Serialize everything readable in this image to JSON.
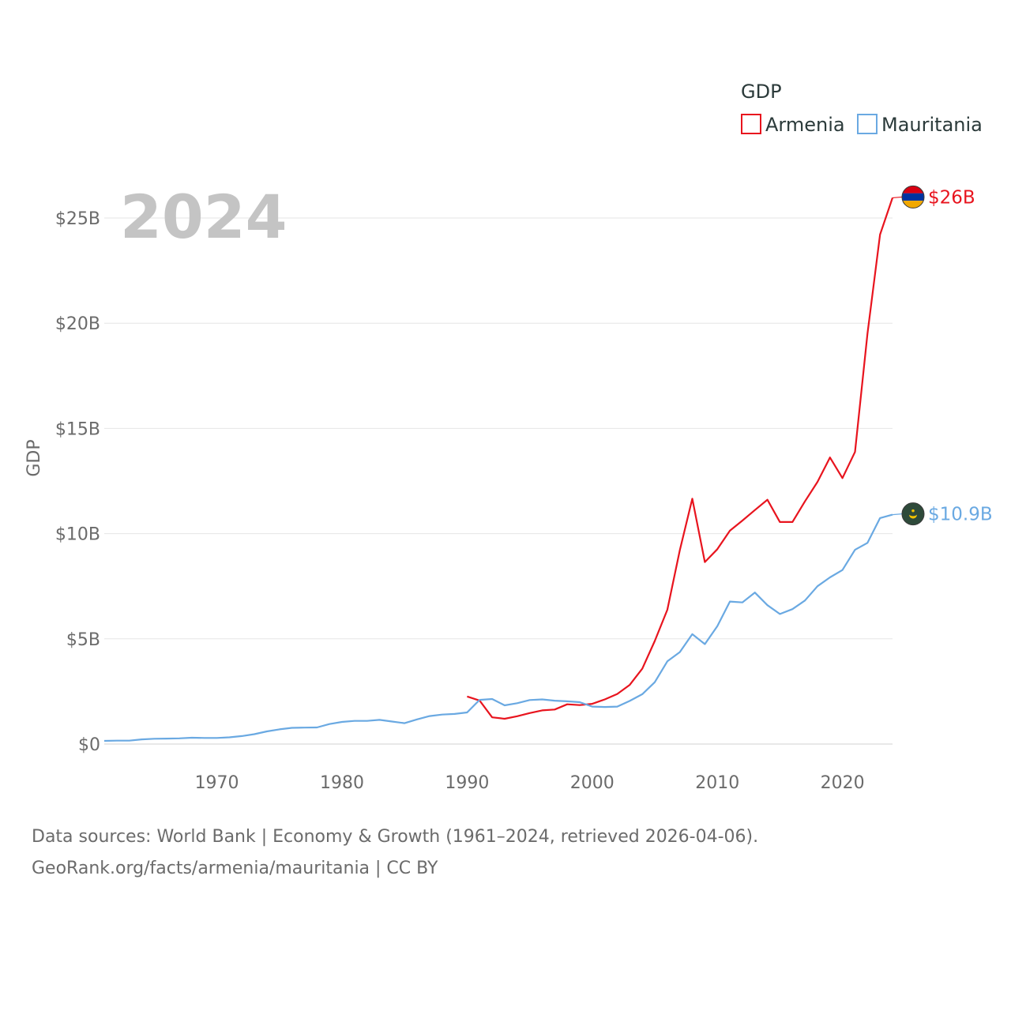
{
  "chart_data": {
    "type": "line",
    "title": "GDP",
    "ylabel": "GDP",
    "xlabel": "",
    "year_display": "2024",
    "xlim": [
      1961,
      2024
    ],
    "ylim": [
      0,
      27
    ],
    "x_ticks": [
      1970,
      1980,
      1990,
      2000,
      2010,
      2020
    ],
    "y_ticks": [
      {
        "value": 0,
        "label": "$0"
      },
      {
        "value": 5,
        "label": "$5B"
      },
      {
        "value": 10,
        "label": "$10B"
      },
      {
        "value": 15,
        "label": "$15B"
      },
      {
        "value": 20,
        "label": "$20B"
      },
      {
        "value": 25,
        "label": "$25B"
      }
    ],
    "units": "billions USD",
    "legend": {
      "title": "GDP",
      "position": "top-right"
    },
    "series": [
      {
        "name": "Armenia",
        "color": "#e8141e",
        "end_label": "$26B",
        "flag_icon": "armenia-flag-icon",
        "x": [
          1990,
          1991,
          1992,
          1993,
          1994,
          1995,
          1996,
          1997,
          1998,
          1999,
          2000,
          2001,
          2002,
          2003,
          2004,
          2005,
          2006,
          2007,
          2008,
          2009,
          2010,
          2011,
          2012,
          2013,
          2014,
          2015,
          2016,
          2017,
          2018,
          2019,
          2020,
          2021,
          2022,
          2023,
          2024
        ],
        "values": [
          2.26,
          2.07,
          1.27,
          1.2,
          1.32,
          1.47,
          1.6,
          1.64,
          1.89,
          1.85,
          1.91,
          2.12,
          2.38,
          2.81,
          3.58,
          4.9,
          6.38,
          9.21,
          11.66,
          8.65,
          9.26,
          10.14,
          10.62,
          11.12,
          11.61,
          10.55,
          10.55,
          11.53,
          12.46,
          13.62,
          12.64,
          13.88,
          19.51,
          24.21,
          25.96
        ]
      },
      {
        "name": "Mauritania",
        "color": "#6aa9e2",
        "end_label": "$10.9B",
        "flag_icon": "mauritania-flag-icon",
        "x": [
          1961,
          1962,
          1963,
          1964,
          1965,
          1966,
          1967,
          1968,
          1969,
          1970,
          1971,
          1972,
          1973,
          1974,
          1975,
          1976,
          1977,
          1978,
          1979,
          1980,
          1981,
          1982,
          1983,
          1984,
          1985,
          1986,
          1987,
          1988,
          1989,
          1990,
          1991,
          1992,
          1993,
          1994,
          1995,
          1996,
          1997,
          1998,
          1999,
          2000,
          2001,
          2002,
          2003,
          2004,
          2005,
          2006,
          2007,
          2008,
          2009,
          2010,
          2011,
          2012,
          2013,
          2014,
          2015,
          2016,
          2017,
          2018,
          2019,
          2020,
          2021,
          2022,
          2023,
          2024
        ],
        "values": [
          0.15,
          0.16,
          0.16,
          0.22,
          0.25,
          0.26,
          0.27,
          0.3,
          0.29,
          0.29,
          0.32,
          0.38,
          0.47,
          0.6,
          0.7,
          0.77,
          0.78,
          0.79,
          0.95,
          1.05,
          1.1,
          1.1,
          1.15,
          1.07,
          0.99,
          1.17,
          1.33,
          1.4,
          1.43,
          1.5,
          2.1,
          2.14,
          1.84,
          1.94,
          2.09,
          2.12,
          2.06,
          2.03,
          1.99,
          1.78,
          1.76,
          1.78,
          2.05,
          2.37,
          2.94,
          3.93,
          4.37,
          5.22,
          4.75,
          5.6,
          6.77,
          6.73,
          7.2,
          6.6,
          6.18,
          6.41,
          6.82,
          7.5,
          7.92,
          8.27,
          9.23,
          9.56,
          10.74,
          10.9
        ]
      }
    ]
  },
  "source": {
    "line1": "Data sources: World Bank | Economy & Growth (1961–2024, retrieved 2026-04-06).",
    "line2": "GeoRank.org/facts/armenia/mauritania | CC BY"
  }
}
